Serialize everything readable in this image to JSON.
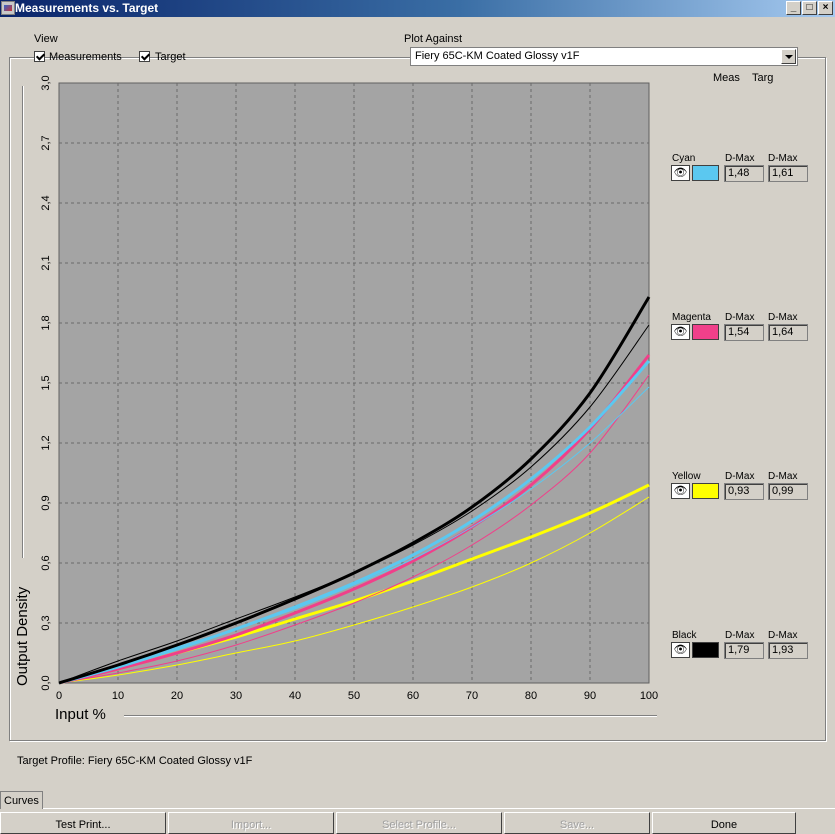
{
  "window": {
    "title": "Measurements vs. Target"
  },
  "view": {
    "label": "View",
    "measurements": {
      "label": "Measurements",
      "checked": true
    },
    "target": {
      "label": "Target",
      "checked": true
    }
  },
  "plot_against": {
    "label": "Plot Against",
    "value": "Fiery 65C-KM Coated Glossy v1F"
  },
  "legend_headers": {
    "meas": "Meas",
    "targ": "Targ"
  },
  "channels": [
    {
      "name": "Cyan",
      "color": "#5bc8f0",
      "meas_label": "D-Max",
      "targ_label": "D-Max",
      "meas_value": "1,48",
      "targ_value": "1,61"
    },
    {
      "name": "Magenta",
      "color": "#f0408a",
      "meas_label": "D-Max",
      "targ_label": "D-Max",
      "meas_value": "1,54",
      "targ_value": "1,64"
    },
    {
      "name": "Yellow",
      "color": "#ffff00",
      "meas_label": "D-Max",
      "targ_label": "D-Max",
      "meas_value": "0,93",
      "targ_value": "0,99"
    },
    {
      "name": "Black",
      "color": "#000000",
      "meas_label": "D-Max",
      "targ_label": "D-Max",
      "meas_value": "1,79",
      "targ_value": "1,93"
    }
  ],
  "footer": {
    "target_profile": "Target Profile: Fiery 65C-KM Coated Glossy v1F"
  },
  "tabs": [
    {
      "label": "Curves"
    }
  ],
  "buttons": [
    {
      "label": "Test Print...",
      "enabled": true
    },
    {
      "label": "Import...",
      "enabled": false
    },
    {
      "label": "Select Profile...",
      "enabled": false
    },
    {
      "label": "Save...",
      "enabled": false
    },
    {
      "label": "Done",
      "enabled": true
    }
  ],
  "chart_data": {
    "type": "line",
    "xlabel": "Input %",
    "ylabel": "Output Density",
    "xlim": [
      0,
      100
    ],
    "ylim": [
      0,
      3.0
    ],
    "xticks": [
      0,
      10,
      20,
      30,
      40,
      50,
      60,
      70,
      80,
      90,
      100
    ],
    "yticks": [
      "0,0",
      "0,3",
      "0,6",
      "0,9",
      "1,2",
      "1,5",
      "1,8",
      "2,1",
      "2,4",
      "2,7",
      "3,0"
    ],
    "grid": true,
    "x": [
      0,
      10,
      20,
      30,
      40,
      50,
      60,
      70,
      80,
      90,
      100
    ],
    "series": [
      {
        "name": "Black",
        "kind": "target",
        "color": "#000000",
        "width": 3,
        "values": [
          0,
          0.09,
          0.19,
          0.3,
          0.42,
          0.55,
          0.7,
          0.88,
          1.12,
          1.45,
          1.93
        ]
      },
      {
        "name": "Black",
        "kind": "measurement",
        "color": "#000000",
        "width": 1,
        "values": [
          0,
          0.11,
          0.21,
          0.32,
          0.43,
          0.55,
          0.69,
          0.86,
          1.08,
          1.38,
          1.79
        ]
      },
      {
        "name": "Cyan",
        "kind": "target",
        "color": "#5bc8f0",
        "width": 3,
        "values": [
          0,
          0.08,
          0.17,
          0.27,
          0.38,
          0.5,
          0.64,
          0.81,
          1.02,
          1.28,
          1.61
        ]
      },
      {
        "name": "Cyan",
        "kind": "measurement",
        "color": "#5bc8f0",
        "width": 1,
        "values": [
          0,
          0.09,
          0.18,
          0.27,
          0.37,
          0.49,
          0.62,
          0.78,
          0.97,
          1.2,
          1.48
        ]
      },
      {
        "name": "Magenta",
        "kind": "target",
        "color": "#f0408a",
        "width": 3,
        "values": [
          0,
          0.07,
          0.15,
          0.24,
          0.35,
          0.47,
          0.61,
          0.78,
          0.99,
          1.27,
          1.64
        ]
      },
      {
        "name": "Magenta",
        "kind": "measurement",
        "color": "#f0408a",
        "width": 1,
        "values": [
          0,
          0.05,
          0.11,
          0.19,
          0.29,
          0.4,
          0.53,
          0.69,
          0.89,
          1.15,
          1.54
        ]
      },
      {
        "name": "Yellow",
        "kind": "target",
        "color": "#ffff00",
        "width": 3,
        "values": [
          0,
          0.07,
          0.15,
          0.23,
          0.32,
          0.41,
          0.51,
          0.62,
          0.73,
          0.85,
          0.99
        ]
      },
      {
        "name": "Yellow",
        "kind": "measurement",
        "color": "#ffff00",
        "width": 1,
        "values": [
          0,
          0.04,
          0.09,
          0.15,
          0.21,
          0.29,
          0.38,
          0.48,
          0.6,
          0.75,
          0.93
        ]
      }
    ]
  }
}
